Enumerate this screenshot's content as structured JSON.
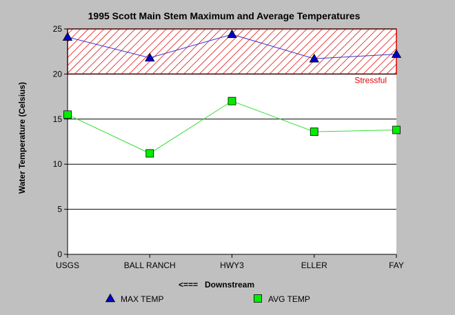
{
  "chart_data": {
    "type": "line",
    "title": "1995 Scott Main Stem Maximum and Average Temperatures",
    "xlabel": "<===   Downstream",
    "ylabel": "Water Temperature (Celsius)",
    "categories": [
      "USGS",
      "BALL RANCH",
      "HWY3",
      "ELLER",
      "FAY"
    ],
    "ylim": [
      0,
      25
    ],
    "yticks": [
      0,
      5,
      10,
      15,
      20,
      25
    ],
    "grid": true,
    "legend_position": "bottom",
    "series": [
      {
        "name": "MAX TEMP",
        "values": [
          24.1,
          21.8,
          24.4,
          21.7,
          22.2
        ],
        "color": "#0000cc",
        "marker": "triangle",
        "line_color": "#3333cc"
      },
      {
        "name": "AVG TEMP",
        "values": [
          15.5,
          11.2,
          17.0,
          13.6,
          13.8
        ],
        "color": "#00ee00",
        "marker": "square",
        "line_color": "#33dd33"
      }
    ],
    "bands": [
      {
        "label": "Stressful",
        "from": 20,
        "to": 25,
        "color": "#e00000",
        "pattern": "hatched"
      }
    ]
  }
}
